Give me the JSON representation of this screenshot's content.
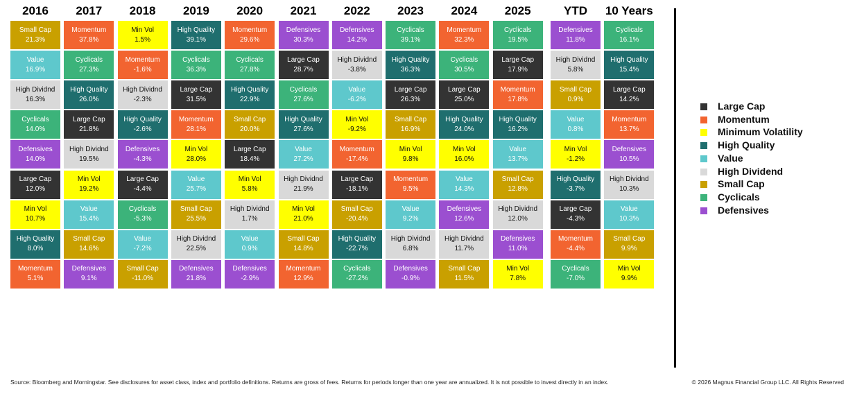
{
  "columns": [
    {
      "header": "2016",
      "cells": [
        {
          "label": "Small Cap",
          "value": "21.3%",
          "color": "#c9a000"
        },
        {
          "label": "Value",
          "value": "16.9%",
          "color": "#5ec8cc"
        },
        {
          "label": "High Dividnd",
          "value": "16.3%",
          "color": "#d9d9d9"
        },
        {
          "label": "Cyclicals",
          "value": "14.0%",
          "color": "#3cb37a"
        },
        {
          "label": "Defensives",
          "value": "14.0%",
          "color": "#9b4fd0"
        },
        {
          "label": "Large Cap",
          "value": "12.0%",
          "color": "#333333"
        },
        {
          "label": "Min Vol",
          "value": "10.7%",
          "color": "#ffff00"
        },
        {
          "label": "High Quality",
          "value": "8.0%",
          "color": "#1f6e6e"
        },
        {
          "label": "Momentum",
          "value": "5.1%",
          "color": "#f26430"
        }
      ]
    },
    {
      "header": "2017",
      "cells": [
        {
          "label": "Momentum",
          "value": "37.8%",
          "color": "#f26430"
        },
        {
          "label": "Cyclicals",
          "value": "27.3%",
          "color": "#3cb37a"
        },
        {
          "label": "High Quality",
          "value": "26.0%",
          "color": "#1f6e6e"
        },
        {
          "label": "Large Cap",
          "value": "21.8%",
          "color": "#333333"
        },
        {
          "label": "High Dividnd",
          "value": "19.5%",
          "color": "#d9d9d9"
        },
        {
          "label": "Min Vol",
          "value": "19.2%",
          "color": "#ffff00"
        },
        {
          "label": "Value",
          "value": "15.4%",
          "color": "#5ec8cc"
        },
        {
          "label": "Small Cap",
          "value": "14.6%",
          "color": "#c9a000"
        },
        {
          "label": "Defensives",
          "value": "9.1%",
          "color": "#9b4fd0"
        }
      ]
    },
    {
      "header": "2018",
      "cells": [
        {
          "label": "Min Vol",
          "value": "1.5%",
          "color": "#ffff00"
        },
        {
          "label": "Momentum",
          "value": "-1.6%",
          "color": "#f26430"
        },
        {
          "label": "High Dividnd",
          "value": "-2.3%",
          "color": "#d9d9d9"
        },
        {
          "label": "High Quality",
          "value": "-2.6%",
          "color": "#1f6e6e"
        },
        {
          "label": "Defensives",
          "value": "-4.3%",
          "color": "#9b4fd0"
        },
        {
          "label": "Large Cap",
          "value": "-4.4%",
          "color": "#333333"
        },
        {
          "label": "Cyclicals",
          "value": "-5.3%",
          "color": "#3cb37a"
        },
        {
          "label": "Value",
          "value": "-7.2%",
          "color": "#5ec8cc"
        },
        {
          "label": "Small Cap",
          "value": "-11.0%",
          "color": "#c9a000"
        }
      ]
    },
    {
      "header": "2019",
      "cells": [
        {
          "label": "High Quality",
          "value": "39.1%",
          "color": "#1f6e6e"
        },
        {
          "label": "Cyclicals",
          "value": "36.3%",
          "color": "#3cb37a"
        },
        {
          "label": "Large Cap",
          "value": "31.5%",
          "color": "#333333"
        },
        {
          "label": "Momentum",
          "value": "28.1%",
          "color": "#f26430"
        },
        {
          "label": "Min Vol",
          "value": "28.0%",
          "color": "#ffff00"
        },
        {
          "label": "Value",
          "value": "25.7%",
          "color": "#5ec8cc"
        },
        {
          "label": "Small Cap",
          "value": "25.5%",
          "color": "#c9a000"
        },
        {
          "label": "High Dividnd",
          "value": "22.5%",
          "color": "#d9d9d9"
        },
        {
          "label": "Defensives",
          "value": "21.8%",
          "color": "#9b4fd0"
        }
      ]
    },
    {
      "header": "2020",
      "cells": [
        {
          "label": "Momentum",
          "value": "29.6%",
          "color": "#f26430"
        },
        {
          "label": "Cyclicals",
          "value": "27.8%",
          "color": "#3cb37a"
        },
        {
          "label": "High Quality",
          "value": "22.9%",
          "color": "#1f6e6e"
        },
        {
          "label": "Small Cap",
          "value": "20.0%",
          "color": "#c9a000"
        },
        {
          "label": "Large Cap",
          "value": "18.4%",
          "color": "#333333"
        },
        {
          "label": "Min Vol",
          "value": "5.8%",
          "color": "#ffff00"
        },
        {
          "label": "High Dividnd",
          "value": "1.7%",
          "color": "#d9d9d9"
        },
        {
          "label": "Value",
          "value": "0.9%",
          "color": "#5ec8cc"
        },
        {
          "label": "Defensives",
          "value": "-2.9%",
          "color": "#9b4fd0"
        }
      ]
    },
    {
      "header": "2021",
      "cells": [
        {
          "label": "Defensives",
          "value": "30.3%",
          "color": "#9b4fd0"
        },
        {
          "label": "Large Cap",
          "value": "28.7%",
          "color": "#333333"
        },
        {
          "label": "Cyclicals",
          "value": "27.6%",
          "color": "#3cb37a"
        },
        {
          "label": "High Quality",
          "value": "27.6%",
          "color": "#1f6e6e"
        },
        {
          "label": "Value",
          "value": "27.2%",
          "color": "#5ec8cc"
        },
        {
          "label": "High Dividnd",
          "value": "21.9%",
          "color": "#d9d9d9"
        },
        {
          "label": "Min Vol",
          "value": "21.0%",
          "color": "#ffff00"
        },
        {
          "label": "Small Cap",
          "value": "14.8%",
          "color": "#c9a000"
        },
        {
          "label": "Momentum",
          "value": "12.9%",
          "color": "#f26430"
        }
      ]
    },
    {
      "header": "2022",
      "cells": [
        {
          "label": "Defensives",
          "value": "14.2%",
          "color": "#9b4fd0"
        },
        {
          "label": "High Dividnd",
          "value": "-3.8%",
          "color": "#d9d9d9"
        },
        {
          "label": "Value",
          "value": "-6.2%",
          "color": "#5ec8cc"
        },
        {
          "label": "Min Vol",
          "value": "-9.2%",
          "color": "#ffff00"
        },
        {
          "label": "Momentum",
          "value": "-17.4%",
          "color": "#f26430"
        },
        {
          "label": "Large Cap",
          "value": "-18.1%",
          "color": "#333333"
        },
        {
          "label": "Small Cap",
          "value": "-20.4%",
          "color": "#c9a000"
        },
        {
          "label": "High Quality",
          "value": "-22.7%",
          "color": "#1f6e6e"
        },
        {
          "label": "Cyclicals",
          "value": "-27.2%",
          "color": "#3cb37a"
        }
      ]
    },
    {
      "header": "2023",
      "cells": [
        {
          "label": "Cyclicals",
          "value": "39.1%",
          "color": "#3cb37a"
        },
        {
          "label": "High Quality",
          "value": "36.3%",
          "color": "#1f6e6e"
        },
        {
          "label": "Large Cap",
          "value": "26.3%",
          "color": "#333333"
        },
        {
          "label": "Small Cap",
          "value": "16.9%",
          "color": "#c9a000"
        },
        {
          "label": "Min Vol",
          "value": "9.8%",
          "color": "#ffff00"
        },
        {
          "label": "Momentum",
          "value": "9.5%",
          "color": "#f26430"
        },
        {
          "label": "Value",
          "value": "9.2%",
          "color": "#5ec8cc"
        },
        {
          "label": "High Dividnd",
          "value": "6.8%",
          "color": "#d9d9d9"
        },
        {
          "label": "Defensives",
          "value": "-0.9%",
          "color": "#9b4fd0"
        }
      ]
    },
    {
      "header": "2024",
      "cells": [
        {
          "label": "Momentum",
          "value": "32.3%",
          "color": "#f26430"
        },
        {
          "label": "Cyclicals",
          "value": "30.5%",
          "color": "#3cb37a"
        },
        {
          "label": "Large Cap",
          "value": "25.0%",
          "color": "#333333"
        },
        {
          "label": "High Quality",
          "value": "24.0%",
          "color": "#1f6e6e"
        },
        {
          "label": "Min Vol",
          "value": "16.0%",
          "color": "#ffff00"
        },
        {
          "label": "Value",
          "value": "14.3%",
          "color": "#5ec8cc"
        },
        {
          "label": "Defensives",
          "value": "12.6%",
          "color": "#9b4fd0"
        },
        {
          "label": "High Dividnd",
          "value": "11.7%",
          "color": "#d9d9d9"
        },
        {
          "label": "Small Cap",
          "value": "11.5%",
          "color": "#c9a000"
        }
      ]
    },
    {
      "header": "2025",
      "cells": [
        {
          "label": "Cyclicals",
          "value": "19.5%",
          "color": "#3cb37a"
        },
        {
          "label": "Large Cap",
          "value": "17.9%",
          "color": "#333333"
        },
        {
          "label": "Momentum",
          "value": "17.8%",
          "color": "#f26430"
        },
        {
          "label": "High Quality",
          "value": "16.2%",
          "color": "#1f6e6e"
        },
        {
          "label": "Value",
          "value": "13.7%",
          "color": "#5ec8cc"
        },
        {
          "label": "Small Cap",
          "value": "12.8%",
          "color": "#c9a000"
        },
        {
          "label": "High Dividnd",
          "value": "12.0%",
          "color": "#d9d9d9"
        },
        {
          "label": "Defensives",
          "value": "11.0%",
          "color": "#9b4fd0"
        },
        {
          "label": "Min Vol",
          "value": "7.8%",
          "color": "#ffff00"
        }
      ]
    },
    {
      "header": "YTD",
      "cells": [
        {
          "label": "Defensives",
          "value": "11.8%",
          "color": "#9b4fd0"
        },
        {
          "label": "High Dividnd",
          "value": "5.8%",
          "color": "#d9d9d9"
        },
        {
          "label": "Small Cap",
          "value": "0.9%",
          "color": "#c9a000"
        },
        {
          "label": "Value",
          "value": "0.8%",
          "color": "#5ec8cc"
        },
        {
          "label": "Min Vol",
          "value": "-1.2%",
          "color": "#ffff00"
        },
        {
          "label": "High Quality",
          "value": "-3.7%",
          "color": "#1f6e6e"
        },
        {
          "label": "Large Cap",
          "value": "-4.3%",
          "color": "#333333"
        },
        {
          "label": "Momentum",
          "value": "-4.4%",
          "color": "#f26430"
        },
        {
          "label": "Cyclicals",
          "value": "-7.0%",
          "color": "#3cb37a"
        }
      ]
    },
    {
      "header": "10 Years",
      "cells": [
        {
          "label": "Cyclicals",
          "value": "16.1%",
          "color": "#3cb37a"
        },
        {
          "label": "High Quality",
          "value": "15.4%",
          "color": "#1f6e6e"
        },
        {
          "label": "Large Cap",
          "value": "14.2%",
          "color": "#333333"
        },
        {
          "label": "Momentum",
          "value": "13.7%",
          "color": "#f26430"
        },
        {
          "label": "Defensives",
          "value": "10.5%",
          "color": "#9b4fd0"
        },
        {
          "label": "High Dividnd",
          "value": "10.3%",
          "color": "#d9d9d9"
        },
        {
          "label": "Value",
          "value": "10.3%",
          "color": "#5ec8cc"
        },
        {
          "label": "Small Cap",
          "value": "9.9%",
          "color": "#c9a000"
        },
        {
          "label": "Min Vol",
          "value": "9.9%",
          "color": "#ffff00"
        }
      ]
    }
  ],
  "legend": [
    {
      "name": "Large Cap",
      "color": "#333333"
    },
    {
      "name": "Momentum",
      "color": "#f26430"
    },
    {
      "name": "Minimum Volatility",
      "color": "#ffff00"
    },
    {
      "name": "High Quality",
      "color": "#1f6e6e"
    },
    {
      "name": "Value",
      "color": "#5ec8cc"
    },
    {
      "name": "High Dividend",
      "color": "#d9d9d9"
    },
    {
      "name": "Small Cap",
      "color": "#c9a000"
    },
    {
      "name": "Cyclicals",
      "color": "#3cb37a"
    },
    {
      "name": "Defensives",
      "color": "#9b4fd0"
    }
  ],
  "footer": {
    "source": "Source: Bloomberg and Morningstar. See disclosures for asset class, index and portfolio definitions. Returns are gross of fees. Returns for periods longer than one year are annualized. It is not possible to invest directly in an index.",
    "copyright": "© 2026 Magnus Financial Group LLC. All Rights Reserved"
  }
}
